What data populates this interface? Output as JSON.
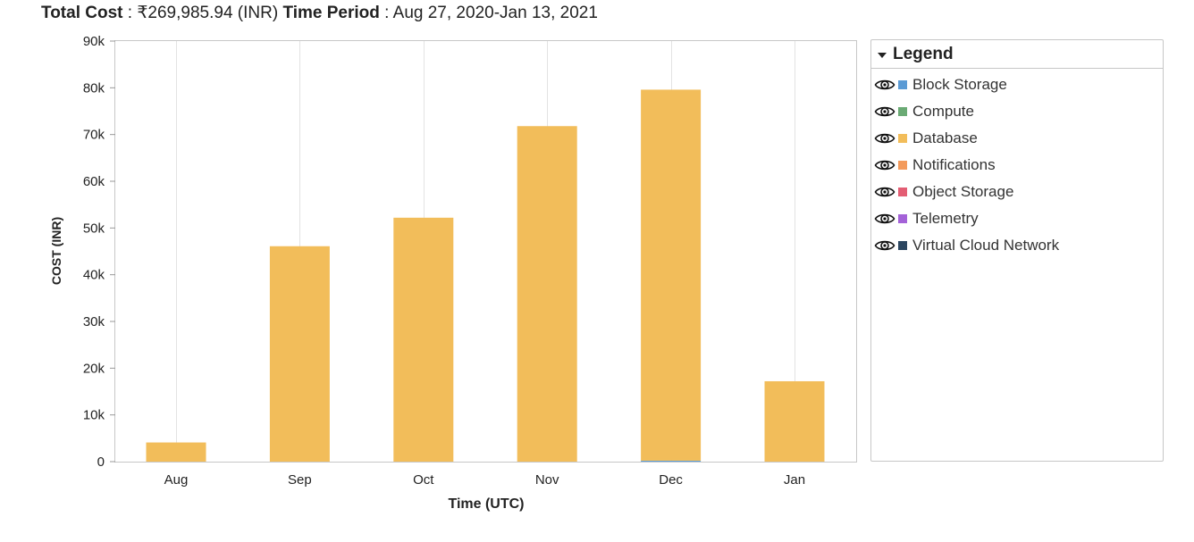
{
  "summary": {
    "total_cost_label": "Total Cost",
    "total_cost_value": "₹269,985.94 (INR)",
    "time_period_label": "Time Period",
    "time_period_value": "Aug 27, 2020-Jan 13, 2021",
    "separator": " : "
  },
  "legend": {
    "title": "Legend",
    "items": [
      {
        "label": "Block Storage",
        "color": "#5b9bd5",
        "icon": "eye-icon"
      },
      {
        "label": "Compute",
        "color": "#6aaa74",
        "icon": "eye-icon"
      },
      {
        "label": "Database",
        "color": "#f2bd5a",
        "icon": "eye-icon"
      },
      {
        "label": "Notifications",
        "color": "#f39a5b",
        "icon": "eye-icon"
      },
      {
        "label": "Object Storage",
        "color": "#e35d73",
        "icon": "eye-icon"
      },
      {
        "label": "Telemetry",
        "color": "#a462d8",
        "icon": "eye-icon"
      },
      {
        "label": "Virtual Cloud Network",
        "color": "#2b4660",
        "icon": "eye-icon"
      }
    ]
  },
  "chart_data": {
    "type": "bar",
    "stacked": true,
    "title": "",
    "xlabel": "Time (UTC)",
    "ylabel": "COST (INR)",
    "ylim": [
      0,
      90000
    ],
    "yticks": [
      0,
      10000,
      20000,
      30000,
      40000,
      50000,
      60000,
      70000,
      80000,
      90000
    ],
    "ytick_labels": [
      "0",
      "10k",
      "20k",
      "30k",
      "40k",
      "50k",
      "60k",
      "70k",
      "80k",
      "90k"
    ],
    "categories": [
      "Aug",
      "Sep",
      "Oct",
      "Nov",
      "Dec",
      "Jan"
    ],
    "grid": "vertical",
    "legend_position": "right",
    "series": [
      {
        "name": "Block Storage",
        "color": "#5b9bd5",
        "values": [
          0,
          0,
          0,
          0,
          200,
          0
        ]
      },
      {
        "name": "Database",
        "color": "#f2bd5a",
        "values": [
          4100,
          46100,
          52200,
          71800,
          79400,
          17200
        ]
      }
    ]
  }
}
